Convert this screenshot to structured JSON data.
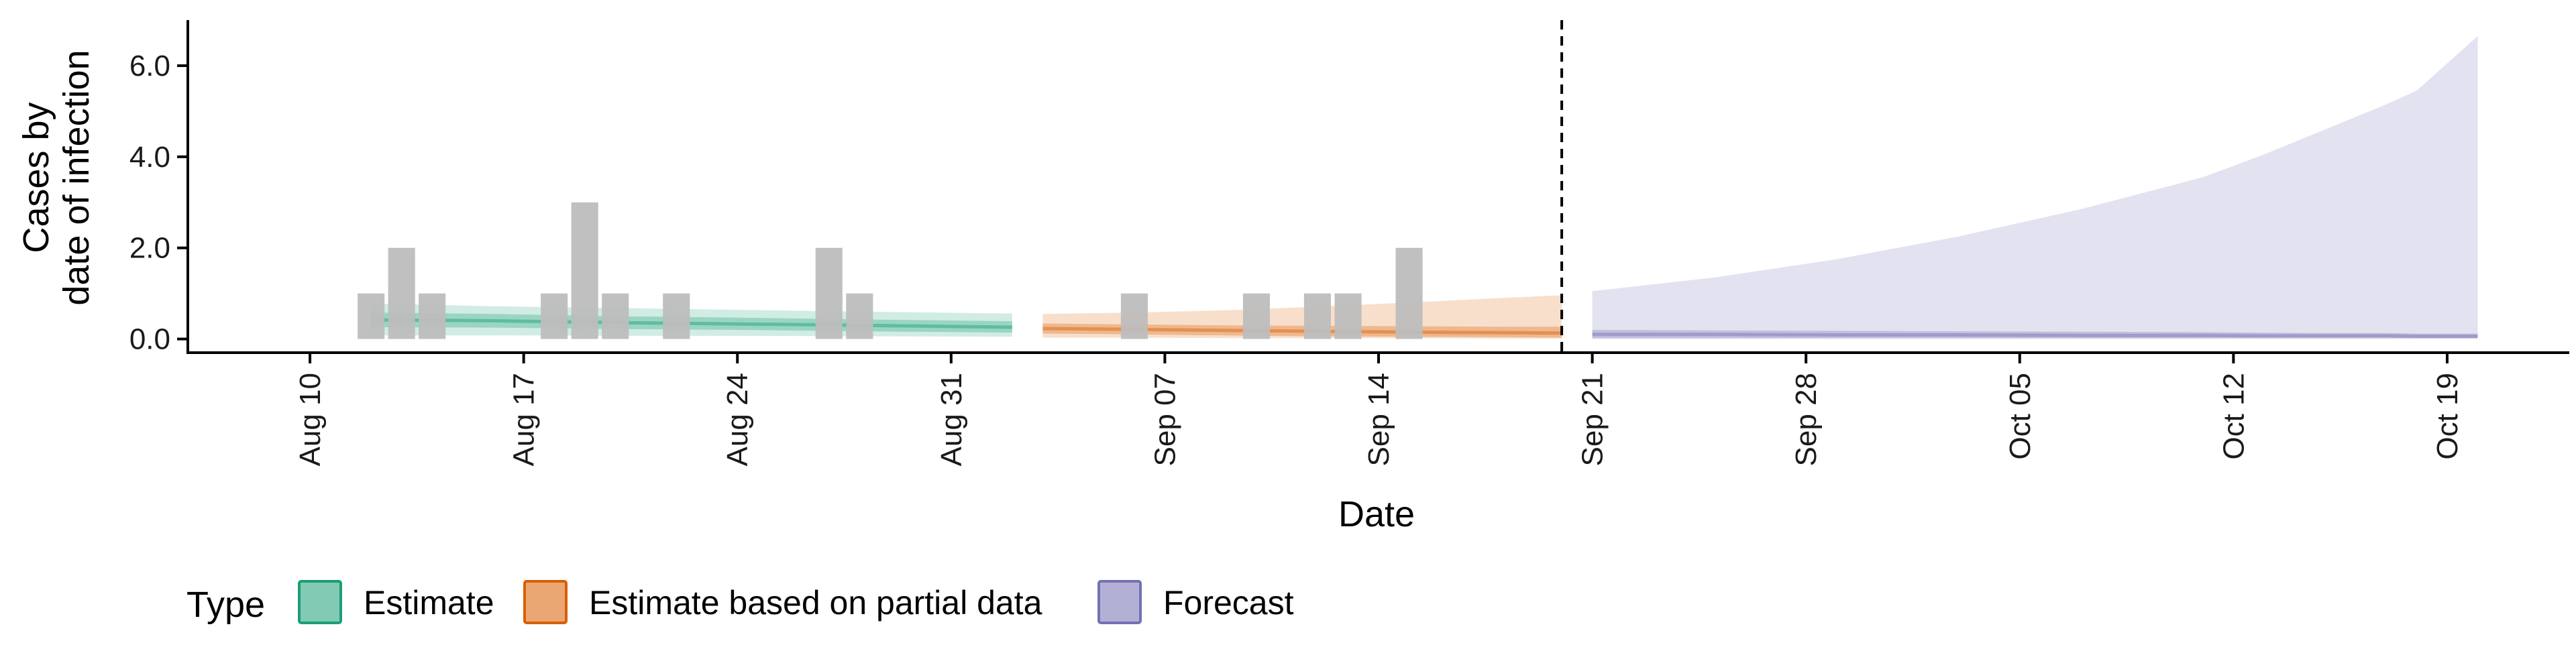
{
  "chart_data": {
    "type": "area",
    "title": "",
    "xlabel": "Date",
    "ylabel_lines": [
      "Cases by",
      "date of infection"
    ],
    "x_range": [
      "2020-08-06",
      "2020-10-23"
    ],
    "ylim": [
      -0.3,
      7.0
    ],
    "y_ticks": [
      0,
      2,
      4,
      6
    ],
    "y_tick_labels": [
      "0.0",
      "2.0",
      "4.0",
      "6.0"
    ],
    "x_ticks": [
      "2020-08-10",
      "2020-08-17",
      "2020-08-24",
      "2020-08-31",
      "2020-09-07",
      "2020-09-14",
      "2020-09-21",
      "2020-09-28",
      "2020-10-05",
      "2020-10-12",
      "2020-10-19"
    ],
    "x_tick_labels": [
      "Aug 10",
      "Aug 17",
      "Aug 24",
      "Aug 31",
      "Sep 07",
      "Sep 14",
      "Sep 21",
      "Sep 28",
      "Oct 05",
      "Oct 12",
      "Oct 19"
    ],
    "grid": false,
    "vline_date": "2020-09-20",
    "bars": {
      "color": "#bdbdbd",
      "data": [
        {
          "date": "2020-08-12",
          "value": 1
        },
        {
          "date": "2020-08-13",
          "value": 2
        },
        {
          "date": "2020-08-14",
          "value": 1
        },
        {
          "date": "2020-08-18",
          "value": 1
        },
        {
          "date": "2020-08-19",
          "value": 3
        },
        {
          "date": "2020-08-20",
          "value": 1
        },
        {
          "date": "2020-08-22",
          "value": 1
        },
        {
          "date": "2020-08-27",
          "value": 2
        },
        {
          "date": "2020-08-28",
          "value": 1
        },
        {
          "date": "2020-09-06",
          "value": 1
        },
        {
          "date": "2020-09-10",
          "value": 1
        },
        {
          "date": "2020-09-12",
          "value": 1
        },
        {
          "date": "2020-09-13",
          "value": 1
        },
        {
          "date": "2020-09-15",
          "value": 2
        }
      ]
    },
    "legend": {
      "title": "Type",
      "placement": "bottom-left",
      "items": [
        {
          "label": "Estimate",
          "fill": "#1b9e77",
          "stroke": "#1b9e77"
        },
        {
          "label": "Estimate based on partial data",
          "fill": "#d95f02",
          "stroke": "#d95f02"
        },
        {
          "label": "Forecast",
          "fill": "#7570b3",
          "stroke": "#7570b3"
        }
      ]
    },
    "series": [
      {
        "name": "Estimate",
        "color": "#1b9e77",
        "dates": [
          "2020-08-12",
          "2020-08-16",
          "2020-08-20",
          "2020-08-24",
          "2020-08-28",
          "2020-09-02"
        ],
        "outer_lower": [
          0.08,
          0.08,
          0.07,
          0.07,
          0.06,
          0.05
        ],
        "outer_upper": [
          0.78,
          0.72,
          0.68,
          0.64,
          0.6,
          0.56
        ],
        "inner_lower": [
          0.26,
          0.25,
          0.22,
          0.2,
          0.17,
          0.14
        ],
        "inner_upper": [
          0.58,
          0.55,
          0.5,
          0.47,
          0.43,
          0.39
        ],
        "median": [
          0.42,
          0.4,
          0.36,
          0.33,
          0.3,
          0.26
        ]
      },
      {
        "name": "Estimate based on partial data",
        "color": "#d95f02",
        "dates": [
          "2020-09-03",
          "2020-09-06",
          "2020-09-09",
          "2020-09-12",
          "2020-09-15",
          "2020-09-18",
          "2020-09-20"
        ],
        "outer_lower": [
          0.03,
          0.03,
          0.02,
          0.02,
          0.02,
          0.01,
          0.01
        ],
        "outer_upper": [
          0.55,
          0.58,
          0.63,
          0.71,
          0.8,
          0.9,
          0.96
        ],
        "inner_lower": [
          0.12,
          0.1,
          0.08,
          0.06,
          0.05,
          0.04,
          0.03
        ],
        "inner_upper": [
          0.34,
          0.32,
          0.3,
          0.29,
          0.28,
          0.27,
          0.27
        ],
        "median": [
          0.23,
          0.21,
          0.19,
          0.17,
          0.15,
          0.14,
          0.13
        ]
      },
      {
        "name": "Forecast",
        "color": "#7570b3",
        "dates": [
          "2020-09-21",
          "2020-09-25",
          "2020-09-29",
          "2020-10-03",
          "2020-10-07",
          "2020-10-11",
          "2020-10-13",
          "2020-10-15",
          "2020-10-17",
          "2020-10-18",
          "2020-10-20"
        ],
        "outer_lower": [
          0.0,
          0.0,
          0.0,
          0.0,
          0.0,
          0.0,
          0.0,
          0.0,
          0.0,
          0.0,
          0.0
        ],
        "outer_upper": [
          1.05,
          1.35,
          1.75,
          2.25,
          2.85,
          3.55,
          4.05,
          4.6,
          5.15,
          5.45,
          6.65
        ],
        "inner_lower": [
          0.02,
          0.02,
          0.02,
          0.02,
          0.02,
          0.02,
          0.02,
          0.02,
          0.02,
          0.02,
          0.02
        ],
        "inner_upper": [
          0.2,
          0.19,
          0.18,
          0.17,
          0.16,
          0.15,
          0.14,
          0.13,
          0.13,
          0.12,
          0.12
        ],
        "median": [
          0.1,
          0.1,
          0.09,
          0.09,
          0.08,
          0.08,
          0.07,
          0.07,
          0.07,
          0.06,
          0.06
        ]
      }
    ]
  }
}
